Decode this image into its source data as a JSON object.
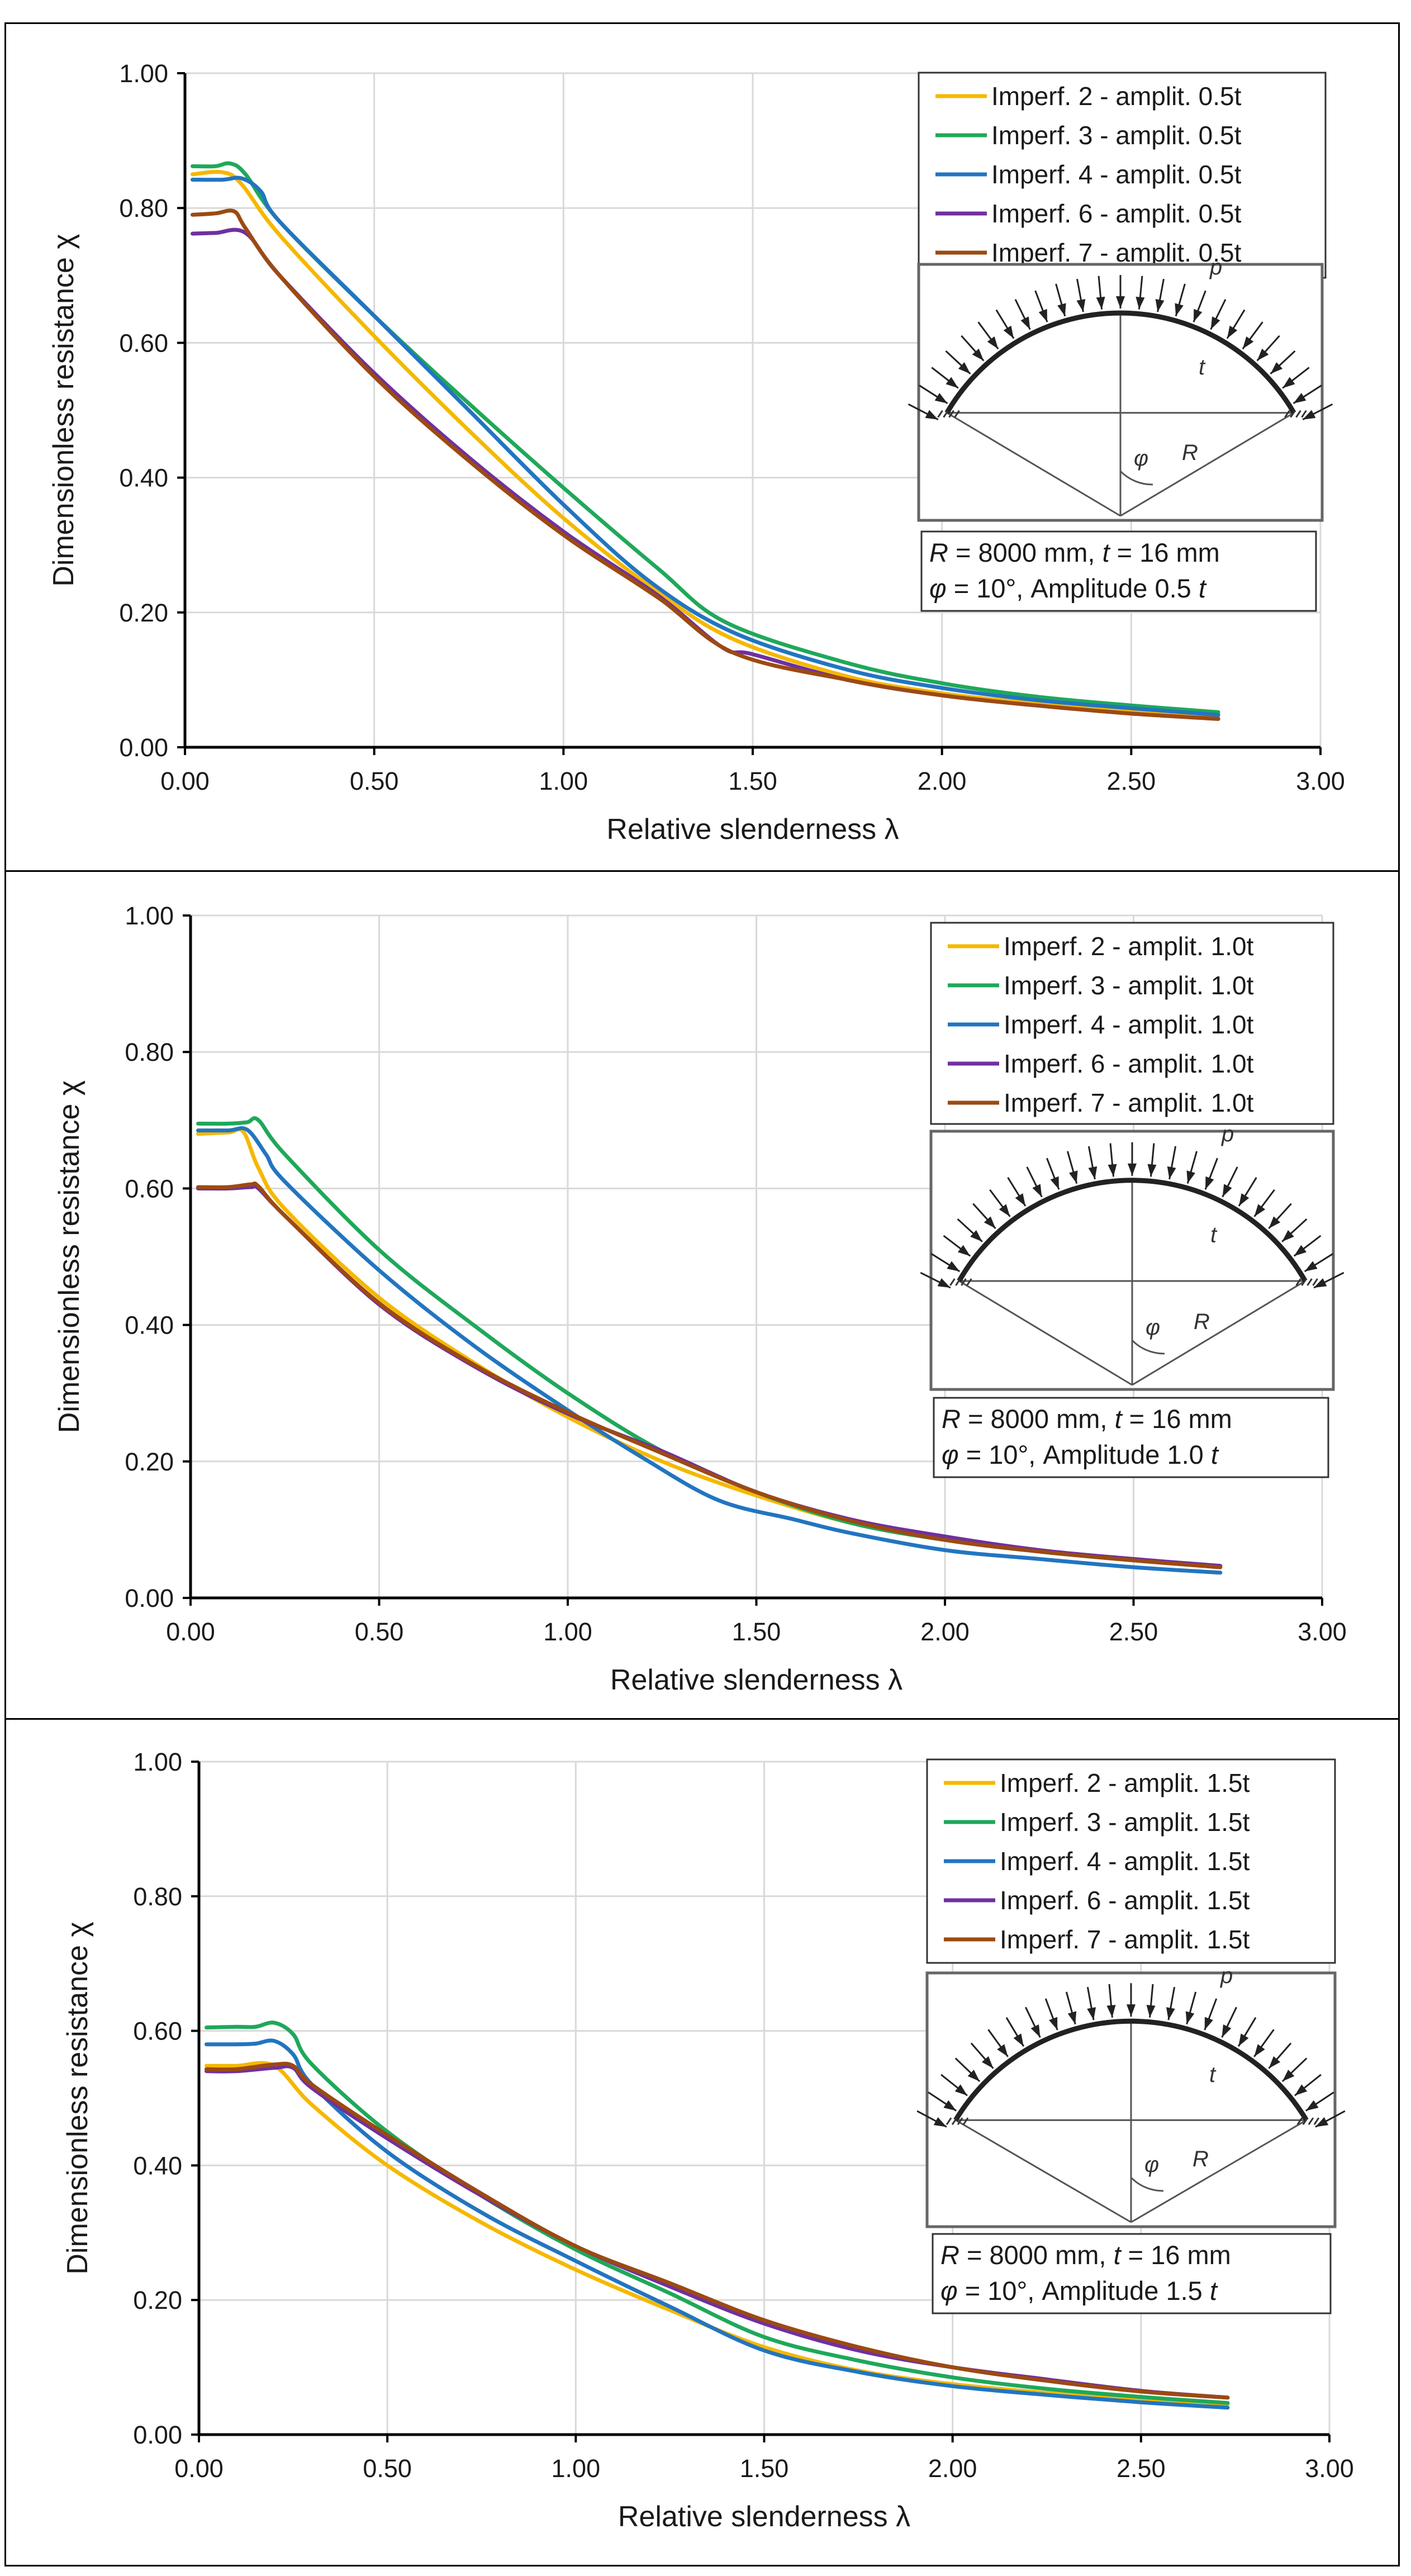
{
  "colors": {
    "imperf_2": "#f5b800",
    "imperf_3": "#1fa85a",
    "imperf_4": "#2275c0",
    "imperf_6": "#7030a0",
    "imperf_7": "#9c4a12",
    "grid": "#d9d9d9",
    "axis": "#000000"
  },
  "chart_data": [
    {
      "type": "line",
      "xlabel": "Relative slenderness",
      "xlabel_symbol": "λ",
      "ylabel": "Dimensionless resistance",
      "ylabel_symbol": "χ",
      "xlim": [
        0,
        3
      ],
      "ylim": [
        0,
        1
      ],
      "x_ticks": [
        "0.00",
        "0.50",
        "1.00",
        "1.50",
        "2.00",
        "2.50",
        "3.00"
      ],
      "y_ticks": [
        "0.00",
        "0.20",
        "0.40",
        "0.60",
        "0.80",
        "1.00"
      ],
      "grid": true,
      "legend_position": "top-right",
      "note": {
        "line1_r": "R",
        "line1_r_value": " = 8000 mm, ",
        "line1_t": "t",
        "line1_t_value": " = 16 mm",
        "line2_phi": "φ",
        "line2_rest": " = 10°, Amplitude 0.5 ",
        "line2_t": "t"
      },
      "inset_labels": {
        "p": "p",
        "t": "t",
        "phi": "φ",
        "R": "R"
      },
      "series": [
        {
          "name": "Imperf. 2 - amplit. 0.5t",
          "color_key": "imperf_2",
          "x": [
            0.02,
            0.1,
            0.15,
            0.25,
            0.5,
            0.75,
            1.0,
            1.25,
            1.45,
            1.75,
            2.0,
            2.25,
            2.5,
            2.73
          ],
          "y": [
            0.85,
            0.853,
            0.835,
            0.76,
            0.61,
            0.47,
            0.34,
            0.23,
            0.16,
            0.105,
            0.08,
            0.065,
            0.053,
            0.045
          ]
        },
        {
          "name": "Imperf. 3 - amplit. 0.5t",
          "color_key": "imperf_3",
          "x": [
            0.02,
            0.08,
            0.12,
            0.16,
            0.25,
            0.5,
            0.75,
            1.0,
            1.25,
            1.43,
            1.75,
            2.0,
            2.25,
            2.5,
            2.73
          ],
          "y": [
            0.862,
            0.862,
            0.866,
            0.85,
            0.78,
            0.64,
            0.51,
            0.385,
            0.265,
            0.185,
            0.125,
            0.095,
            0.075,
            0.062,
            0.052
          ]
        },
        {
          "name": "Imperf. 4 - amplit. 0.5t",
          "color_key": "imperf_4",
          "x": [
            0.02,
            0.1,
            0.15,
            0.2,
            0.25,
            0.5,
            0.75,
            1.0,
            1.23,
            1.45,
            1.75,
            2.0,
            2.25,
            2.5,
            2.73
          ],
          "y": [
            0.842,
            0.842,
            0.844,
            0.825,
            0.78,
            0.64,
            0.5,
            0.36,
            0.245,
            0.17,
            0.115,
            0.088,
            0.07,
            0.058,
            0.048
          ]
        },
        {
          "name": "Imperf. 6 - amplit. 0.5t",
          "color_key": "imperf_6",
          "x": [
            0.02,
            0.08,
            0.16,
            0.25,
            0.5,
            0.75,
            1.0,
            1.25,
            1.42,
            1.5,
            1.75,
            2.0,
            2.25,
            2.5,
            2.73
          ],
          "y": [
            0.762,
            0.763,
            0.763,
            0.7,
            0.555,
            0.43,
            0.32,
            0.225,
            0.148,
            0.138,
            0.1,
            0.077,
            0.062,
            0.05,
            0.042
          ]
        },
        {
          "name": "Imperf. 7 - amplit. 0.5t",
          "color_key": "imperf_7",
          "x": [
            0.02,
            0.08,
            0.13,
            0.16,
            0.25,
            0.5,
            0.75,
            1.0,
            1.25,
            1.45,
            1.75,
            2.0,
            2.25,
            2.5,
            2.73
          ],
          "y": [
            0.79,
            0.792,
            0.795,
            0.77,
            0.7,
            0.55,
            0.425,
            0.315,
            0.222,
            0.14,
            0.1,
            0.077,
            0.062,
            0.05,
            0.042
          ]
        }
      ]
    },
    {
      "type": "line",
      "xlabel": "Relative slenderness",
      "xlabel_symbol": "λ",
      "ylabel": "Dimensionless resistance",
      "ylabel_symbol": "χ",
      "xlim": [
        0,
        3
      ],
      "ylim": [
        0,
        1
      ],
      "x_ticks": [
        "0.00",
        "0.50",
        "1.00",
        "1.50",
        "2.00",
        "2.50",
        "3.00"
      ],
      "y_ticks": [
        "0.00",
        "0.20",
        "0.40",
        "0.60",
        "0.80",
        "1.00"
      ],
      "grid": true,
      "legend_position": "top-right",
      "note": {
        "line1_r": "R",
        "line1_r_value": " = 8000 mm, ",
        "line1_t": "t",
        "line1_t_value": " = 16 mm",
        "line2_phi": "φ",
        "line2_rest": " = 10°, Amplitude 1.0 ",
        "line2_t": "t"
      },
      "inset_labels": {
        "p": "p",
        "t": "t",
        "phi": "φ",
        "R": "R"
      },
      "series": [
        {
          "name": "Imperf. 2 - amplit. 1.0t",
          "color_key": "imperf_2",
          "x": [
            0.02,
            0.1,
            0.14,
            0.18,
            0.25,
            0.5,
            0.75,
            1.0,
            1.25,
            1.5,
            1.75,
            2.0,
            2.25,
            2.5,
            2.73
          ],
          "y": [
            0.68,
            0.682,
            0.683,
            0.63,
            0.57,
            0.44,
            0.345,
            0.265,
            0.2,
            0.15,
            0.11,
            0.085,
            0.068,
            0.055,
            0.045
          ]
        },
        {
          "name": "Imperf. 3 - amplit. 1.0t",
          "color_key": "imperf_3",
          "x": [
            0.02,
            0.1,
            0.15,
            0.18,
            0.25,
            0.5,
            0.75,
            1.0,
            1.25,
            1.5,
            1.75,
            2.0,
            2.25,
            2.5,
            2.73
          ],
          "y": [
            0.695,
            0.695,
            0.697,
            0.7,
            0.65,
            0.51,
            0.4,
            0.3,
            0.215,
            0.155,
            0.11,
            0.085,
            0.068,
            0.055,
            0.045
          ]
        },
        {
          "name": "Imperf. 4 - amplit. 1.0t",
          "color_key": "imperf_4",
          "x": [
            0.02,
            0.1,
            0.15,
            0.2,
            0.25,
            0.5,
            0.75,
            1.0,
            1.2,
            1.4,
            1.6,
            1.75,
            2.0,
            2.25,
            2.5,
            2.73
          ],
          "y": [
            0.685,
            0.685,
            0.686,
            0.65,
            0.61,
            0.48,
            0.37,
            0.275,
            0.205,
            0.143,
            0.115,
            0.095,
            0.07,
            0.057,
            0.045,
            0.037
          ]
        },
        {
          "name": "Imperf. 6 - amplit. 1.0t",
          "color_key": "imperf_6",
          "x": [
            0.02,
            0.1,
            0.16,
            0.18,
            0.25,
            0.5,
            0.75,
            1.0,
            1.25,
            1.5,
            1.75,
            2.0,
            2.25,
            2.5,
            2.73
          ],
          "y": [
            0.6,
            0.6,
            0.602,
            0.6,
            0.56,
            0.43,
            0.34,
            0.27,
            0.215,
            0.155,
            0.115,
            0.09,
            0.07,
            0.057,
            0.047
          ]
        },
        {
          "name": "Imperf. 7 - amplit. 1.0t",
          "color_key": "imperf_7",
          "x": [
            0.02,
            0.1,
            0.16,
            0.18,
            0.25,
            0.5,
            0.75,
            1.0,
            1.25,
            1.5,
            1.75,
            2.0,
            2.25,
            2.5,
            2.73
          ],
          "y": [
            0.602,
            0.602,
            0.606,
            0.603,
            0.56,
            0.432,
            0.342,
            0.272,
            0.212,
            0.155,
            0.113,
            0.085,
            0.068,
            0.055,
            0.045
          ]
        }
      ]
    },
    {
      "type": "line",
      "xlabel": "Relative slenderness",
      "xlabel_symbol": "λ",
      "ylabel": "Dimensionless resistance",
      "ylabel_symbol": "χ",
      "xlim": [
        0,
        3
      ],
      "ylim": [
        0,
        1
      ],
      "x_ticks": [
        "0.00",
        "0.50",
        "1.00",
        "1.50",
        "2.00",
        "2.50",
        "3.00"
      ],
      "y_ticks": [
        "0.00",
        "0.20",
        "0.40",
        "0.60",
        "0.80",
        "1.00"
      ],
      "grid": true,
      "legend_position": "top-right",
      "note": {
        "line1_r": "R",
        "line1_r_value": " = 8000 mm, ",
        "line1_t": "t",
        "line1_t_value": " = 16 mm",
        "line2_phi": "φ",
        "line2_rest": " = 10°, Amplitude 1.5 ",
        "line2_t": "t"
      },
      "inset_labels": {
        "p": "p",
        "t": "t",
        "phi": "φ",
        "R": "R"
      },
      "series": [
        {
          "name": "Imperf. 2 - amplit. 1.5t",
          "color_key": "imperf_2",
          "x": [
            0.02,
            0.1,
            0.2,
            0.3,
            0.5,
            0.75,
            1.0,
            1.25,
            1.5,
            1.75,
            2.0,
            2.25,
            2.5,
            2.73
          ],
          "y": [
            0.548,
            0.548,
            0.548,
            0.49,
            0.4,
            0.315,
            0.245,
            0.185,
            0.13,
            0.095,
            0.075,
            0.062,
            0.052,
            0.045
          ]
        },
        {
          "name": "Imperf. 3 - amplit. 1.5t",
          "color_key": "imperf_3",
          "x": [
            0.02,
            0.1,
            0.15,
            0.2,
            0.25,
            0.3,
            0.5,
            0.75,
            1.0,
            1.25,
            1.5,
            1.75,
            2.0,
            2.25,
            2.5,
            2.73
          ],
          "y": [
            0.605,
            0.606,
            0.606,
            0.612,
            0.595,
            0.55,
            0.45,
            0.355,
            0.275,
            0.21,
            0.145,
            0.11,
            0.085,
            0.068,
            0.056,
            0.047
          ]
        },
        {
          "name": "Imperf. 4 - amplit. 1.5t",
          "color_key": "imperf_4",
          "x": [
            0.02,
            0.1,
            0.15,
            0.2,
            0.25,
            0.3,
            0.5,
            0.75,
            1.0,
            1.25,
            1.5,
            1.75,
            2.0,
            2.25,
            2.5,
            2.73
          ],
          "y": [
            0.58,
            0.58,
            0.581,
            0.585,
            0.565,
            0.52,
            0.42,
            0.33,
            0.258,
            0.19,
            0.125,
            0.093,
            0.072,
            0.059,
            0.048,
            0.04
          ]
        },
        {
          "name": "Imperf. 6 - amplit. 1.5t",
          "color_key": "imperf_6",
          "x": [
            0.02,
            0.1,
            0.2,
            0.25,
            0.3,
            0.5,
            0.75,
            1.0,
            1.25,
            1.5,
            1.75,
            2.0,
            2.25,
            2.5,
            2.73
          ],
          "y": [
            0.54,
            0.54,
            0.545,
            0.545,
            0.515,
            0.44,
            0.355,
            0.28,
            0.22,
            0.165,
            0.125,
            0.1,
            0.082,
            0.065,
            0.055
          ]
        },
        {
          "name": "Imperf. 7 - amplit. 1.5t",
          "color_key": "imperf_7",
          "x": [
            0.02,
            0.1,
            0.2,
            0.25,
            0.3,
            0.5,
            0.75,
            1.0,
            1.25,
            1.5,
            1.75,
            2.0,
            2.25,
            2.5,
            2.73
          ],
          "y": [
            0.543,
            0.543,
            0.55,
            0.548,
            0.52,
            0.445,
            0.358,
            0.28,
            0.225,
            0.17,
            0.13,
            0.1,
            0.08,
            0.064,
            0.055
          ]
        }
      ]
    }
  ]
}
